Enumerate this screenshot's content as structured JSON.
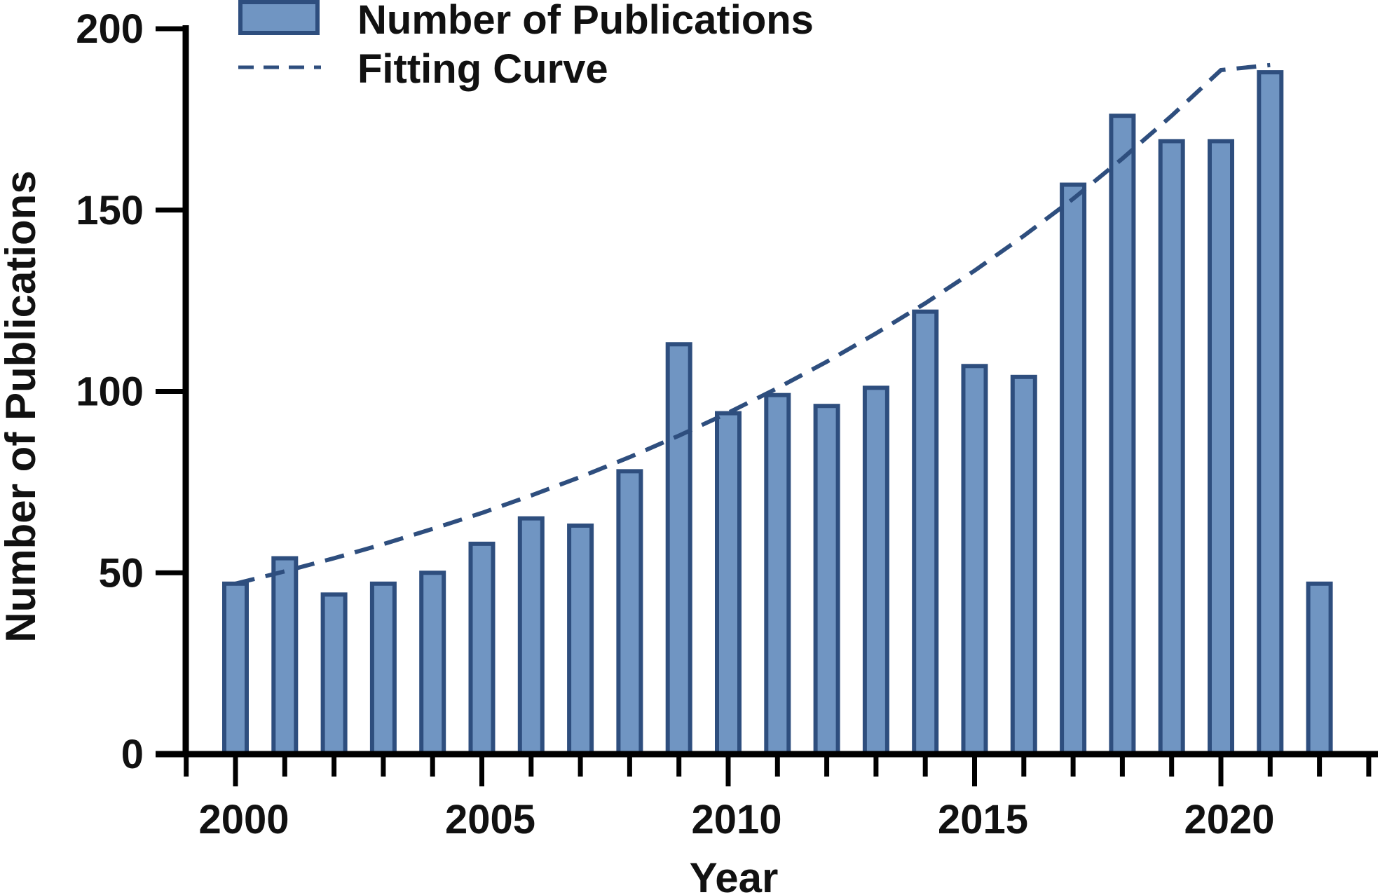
{
  "chart_data": {
    "type": "bar",
    "title": "",
    "xlabel": "Year",
    "ylabel": "Number of Publications",
    "ylim": [
      0,
      200
    ],
    "yticks": [
      "0",
      "50",
      "100",
      "150",
      "200"
    ],
    "xticks": [
      "2000",
      "2005",
      "2010",
      "2015",
      "2020"
    ],
    "legend_position": "top-left",
    "series": [
      {
        "name": "Number of Publications",
        "kind": "bar",
        "color": "#7095C2",
        "edge_color": "#2E4E7E",
        "x": [
          2000,
          2001,
          2002,
          2003,
          2004,
          2005,
          2006,
          2007,
          2008,
          2009,
          2010,
          2011,
          2012,
          2013,
          2014,
          2015,
          2016,
          2017,
          2018,
          2019,
          2020,
          2021,
          2022
        ],
        "values": [
          47,
          54,
          44,
          47,
          50,
          58,
          65,
          63,
          78,
          113,
          94,
          99,
          96,
          101,
          122,
          107,
          104,
          157,
          176,
          169,
          169,
          188,
          47
        ]
      },
      {
        "name": "Fitting Curve",
        "kind": "line",
        "style": "dashed",
        "color": "#2E4E7E",
        "x": [
          2000,
          2001,
          2002,
          2003,
          2004,
          2005,
          2006,
          2007,
          2008,
          2009,
          2010,
          2011,
          2012,
          2013,
          2014,
          2015,
          2016,
          2017,
          2018,
          2019,
          2020,
          2021
        ],
        "values": [
          47.0,
          50.4,
          54.0,
          57.9,
          62.1,
          66.5,
          71.3,
          76.4,
          81.9,
          87.8,
          94.1,
          100.9,
          108.2,
          116.0,
          124.3,
          133.3,
          142.9,
          153.1,
          164.2,
          176.0,
          188.6,
          190.0
        ]
      }
    ]
  }
}
